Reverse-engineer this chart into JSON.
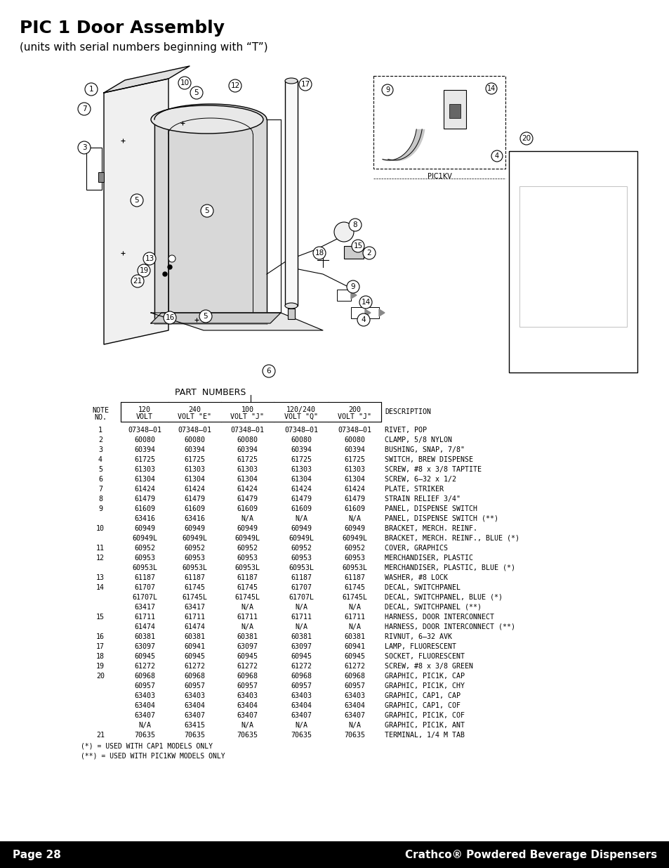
{
  "title": "PIC 1 Door Assembly",
  "subtitle": "(units with serial numbers beginning with “T”)",
  "page_num": "Page 28",
  "brand": "Crathco® Powdered Beverage Dispensers",
  "bg_color": "#ffffff",
  "footer_bg": "#000000",
  "footer_text_color": "#ffffff",
  "col_header_line1": [
    "NOTE",
    "120",
    "240",
    "100",
    "120/240",
    "200",
    "DESCRIPTION"
  ],
  "col_header_line2": [
    "NO.",
    "VOLT",
    "VOLT \"E\"",
    "VOLT \"J\"",
    "VOLT \"Q\"",
    "VOLT \"J\"",
    ""
  ],
  "table_rows": [
    [
      "1",
      "07348–01",
      "07348–01",
      "07348–01",
      "07348–01",
      "07348–01",
      "RIVET, POP"
    ],
    [
      "2",
      "60080",
      "60080",
      "60080",
      "60080",
      "60080",
      "CLAMP, 5/8 NYLON"
    ],
    [
      "3",
      "60394",
      "60394",
      "60394",
      "60394",
      "60394",
      "BUSHING, SNAP, 7/8\""
    ],
    [
      "4",
      "61725",
      "61725",
      "61725",
      "61725",
      "61725",
      "SWITCH, BREW DISPENSE"
    ],
    [
      "5",
      "61303",
      "61303",
      "61303",
      "61303",
      "61303",
      "SCREW, #8 x 3/8 TAPTITE"
    ],
    [
      "6",
      "61304",
      "61304",
      "61304",
      "61304",
      "61304",
      "SCREW, 6–32 x 1/2"
    ],
    [
      "7",
      "61424",
      "61424",
      "61424",
      "61424",
      "61424",
      "PLATE, STRIKER"
    ],
    [
      "8",
      "61479",
      "61479",
      "61479",
      "61479",
      "61479",
      "STRAIN RELIEF 3/4\""
    ],
    [
      "9",
      "61609",
      "61609",
      "61609",
      "61609",
      "61609",
      "PANEL, DISPENSE SWITCH"
    ],
    [
      "",
      "63416",
      "63416",
      "N/A",
      "N/A",
      "N/A",
      "PANEL, DISPENSE SWITCH (**)"
    ],
    [
      "10",
      "60949",
      "60949",
      "60949",
      "60949",
      "60949",
      "BRACKET, MERCH. REINF."
    ],
    [
      "",
      "60949L",
      "60949L",
      "60949L",
      "60949L",
      "60949L",
      "BRACKET, MERCH. REINF., BLUE (*)"
    ],
    [
      "11",
      "60952",
      "60952",
      "60952",
      "60952",
      "60952",
      "COVER, GRAPHICS"
    ],
    [
      "12",
      "60953",
      "60953",
      "60953",
      "60953",
      "60953",
      "MERCHANDISER, PLASTIC"
    ],
    [
      "",
      "60953L",
      "60953L",
      "60953L",
      "60953L",
      "60953L",
      "MERCHANDISER, PLASTIC, BLUE (*)"
    ],
    [
      "13",
      "61187",
      "61187",
      "61187",
      "61187",
      "61187",
      "WASHER, #8 LOCK"
    ],
    [
      "14",
      "61707",
      "61745",
      "61745",
      "61707",
      "61745",
      "DECAL, SWITCHPANEL"
    ],
    [
      "",
      "61707L",
      "61745L",
      "61745L",
      "61707L",
      "61745L",
      "DECAL, SWITCHPANEL, BLUE (*)"
    ],
    [
      "",
      "63417",
      "63417",
      "N/A",
      "N/A",
      "N/A",
      "DECAL, SWITCHPANEL (**)"
    ],
    [
      "15",
      "61711",
      "61711",
      "61711",
      "61711",
      "61711",
      "HARNESS, DOOR INTERCONNECT"
    ],
    [
      "",
      "61474",
      "61474",
      "N/A",
      "N/A",
      "N/A",
      "HARNESS, DOOR INTERCONNECT (**)"
    ],
    [
      "16",
      "60381",
      "60381",
      "60381",
      "60381",
      "60381",
      "RIVNUT, 6–32 AVK"
    ],
    [
      "17",
      "63097",
      "60941",
      "63097",
      "63097",
      "60941",
      "LAMP, FLUORESCENT"
    ],
    [
      "18",
      "60945",
      "60945",
      "60945",
      "60945",
      "60945",
      "SOCKET, FLUORESCENT"
    ],
    [
      "19",
      "61272",
      "61272",
      "61272",
      "61272",
      "61272",
      "SCREW, #8 x 3/8 GREEN"
    ],
    [
      "20",
      "60968",
      "60968",
      "60968",
      "60968",
      "60968",
      "GRAPHIC, PIC1K, CAP"
    ],
    [
      "",
      "60957",
      "60957",
      "60957",
      "60957",
      "60957",
      "GRAPHIC, PIC1K, CHY"
    ],
    [
      "",
      "63403",
      "63403",
      "63403",
      "63403",
      "63403",
      "GRAPHIC, CAP1, CAP"
    ],
    [
      "",
      "63404",
      "63404",
      "63404",
      "63404",
      "63404",
      "GRAPHIC, CAP1, COF"
    ],
    [
      "",
      "63407",
      "63407",
      "63407",
      "63407",
      "63407",
      "GRAPHIC, PIC1K, COF"
    ],
    [
      "",
      "N/A",
      "63415",
      "N/A",
      "N/A",
      "N/A",
      "GRAPHIC, PIC1K, ANT"
    ],
    [
      "21",
      "70635",
      "70635",
      "70635",
      "70635",
      "70635",
      "TERMINAL, 1/4 M TAB"
    ]
  ],
  "footnotes": [
    "(*) = USED WITH CAP1 MODELS ONLY",
    "(**) = USED WITH PIC1KW MODELS ONLY"
  ],
  "part_numbers_label": "PART  NUMBERS"
}
